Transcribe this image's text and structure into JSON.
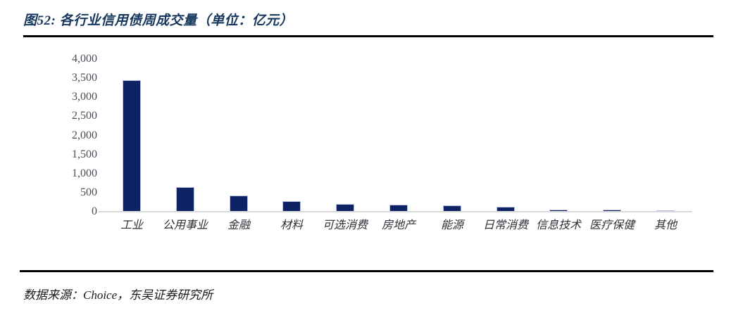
{
  "header": {
    "title": "图52:  各行业信用债周成交量（单位：亿元）"
  },
  "footer": {
    "source": "数据来源：Choice，东吴证券研究所"
  },
  "chart_data": {
    "type": "bar",
    "title": "各行业信用债周成交量（单位：亿元）",
    "categories": [
      "工业",
      "公用事业",
      "金融",
      "材料",
      "可选消费",
      "房地产",
      "能源",
      "日常消费",
      "信息技术",
      "医疗保健",
      "其他"
    ],
    "values": [
      3450,
      650,
      430,
      270,
      200,
      190,
      160,
      130,
      55,
      50,
      30
    ],
    "xlabel": "",
    "ylabel": "",
    "ylim": [
      0,
      4000
    ],
    "ytick_interval": 500,
    "ytick_labels": [
      "0",
      "500",
      "1,000",
      "1,500",
      "2,000",
      "2,500",
      "3,000",
      "3,500",
      "4,000"
    ],
    "grid": false,
    "legend": "none",
    "bar_color": "#0e2363",
    "bar_border_color": "#b7c1de",
    "axis_line_color": "#d9d9d9"
  }
}
